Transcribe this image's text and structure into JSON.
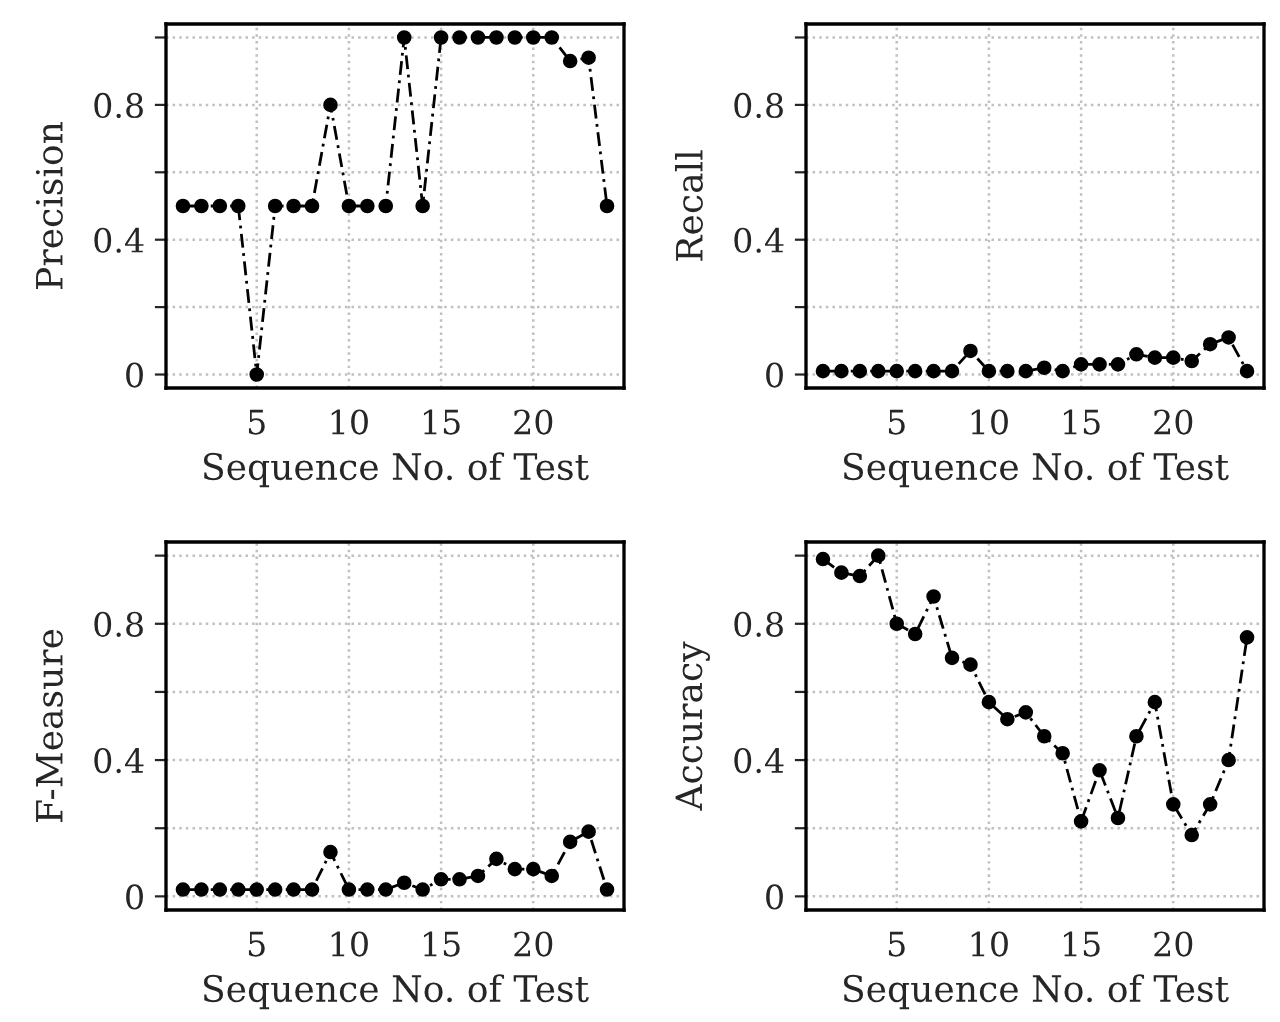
{
  "chart_data": [
    {
      "type": "line",
      "xlabel": "Sequence No. of Test",
      "ylabel": "Precision",
      "x": [
        1,
        2,
        3,
        4,
        5,
        6,
        7,
        8,
        9,
        10,
        11,
        12,
        13,
        14,
        15,
        16,
        17,
        18,
        19,
        20,
        21,
        22,
        23,
        24
      ],
      "series": [
        {
          "color": "#000000",
          "values": [
            0.5,
            0.5,
            0.5,
            0.5,
            0,
            0.5,
            0.5,
            0.5,
            0.8,
            0.5,
            0.5,
            0.5,
            1.0,
            0.5,
            1.0,
            1.0,
            1.0,
            1.0,
            1.0,
            1.0,
            1.0,
            0.93,
            0.94,
            0.5
          ]
        }
      ],
      "xlim": [
        0.08,
        24.92
      ],
      "ylim": [
        -0.04,
        1.04
      ],
      "xticks": [
        5,
        10,
        15,
        20
      ],
      "yticks": [
        0,
        {
          "value": 0.2,
          "label": null
        },
        0.4,
        {
          "value": 0.6,
          "label": null
        },
        0.8,
        {
          "value": 1,
          "label": null
        }
      ],
      "grid": true,
      "marker": "circle",
      "line_style": "dashed"
    },
    {
      "type": "line",
      "xlabel": "Sequence No. of Test",
      "ylabel": "Recall",
      "x": [
        1,
        2,
        3,
        4,
        5,
        6,
        7,
        8,
        9,
        10,
        11,
        12,
        13,
        14,
        15,
        16,
        17,
        18,
        19,
        20,
        21,
        22,
        23,
        24
      ],
      "series": [
        {
          "color": "#000000",
          "values": [
            0.01,
            0.01,
            0.01,
            0.01,
            0.01,
            0.01,
            0.01,
            0.01,
            0.07,
            0.01,
            0.01,
            0.01,
            0.02,
            0.01,
            0.03,
            0.03,
            0.03,
            0.06,
            0.05,
            0.05,
            0.04,
            0.09,
            0.11,
            0.01
          ]
        }
      ],
      "xlim": [
        0.08,
        24.92
      ],
      "ylim": [
        -0.04,
        1.04
      ],
      "xticks": [
        5,
        10,
        15,
        20
      ],
      "yticks": [
        0,
        {
          "value": 0.2,
          "label": null
        },
        0.4,
        {
          "value": 0.6,
          "label": null
        },
        0.8,
        {
          "value": 1,
          "label": null
        }
      ],
      "grid": true,
      "marker": "circle",
      "line_style": "dashed"
    },
    {
      "type": "line",
      "xlabel": "Sequence No. of Test",
      "ylabel": "F-Measure",
      "x": [
        1,
        2,
        3,
        4,
        5,
        6,
        7,
        8,
        9,
        10,
        11,
        12,
        13,
        14,
        15,
        16,
        17,
        18,
        19,
        20,
        21,
        22,
        23,
        24
      ],
      "series": [
        {
          "color": "#000000",
          "values": [
            0.02,
            0.02,
            0.02,
            0.02,
            0.02,
            0.02,
            0.02,
            0.02,
            0.13,
            0.02,
            0.02,
            0.02,
            0.04,
            0.02,
            0.05,
            0.05,
            0.06,
            0.11,
            0.08,
            0.08,
            0.06,
            0.16,
            0.19,
            0.02
          ]
        }
      ],
      "xlim": [
        0.08,
        24.92
      ],
      "ylim": [
        -0.04,
        1.04
      ],
      "xticks": [
        5,
        10,
        15,
        20
      ],
      "yticks": [
        0,
        {
          "value": 0.2,
          "label": null
        },
        0.4,
        {
          "value": 0.6,
          "label": null
        },
        0.8,
        {
          "value": 1,
          "label": null
        }
      ],
      "grid": true,
      "marker": "circle",
      "line_style": "dashed"
    },
    {
      "type": "line",
      "xlabel": "Sequence No. of Test",
      "ylabel": "Accuracy",
      "x": [
        1,
        2,
        3,
        4,
        5,
        6,
        7,
        8,
        9,
        10,
        11,
        12,
        13,
        14,
        15,
        16,
        17,
        18,
        19,
        20,
        21,
        22,
        23,
        24
      ],
      "series": [
        {
          "color": "#000000",
          "values": [
            0.99,
            0.95,
            0.94,
            1.0,
            0.8,
            0.77,
            0.88,
            0.7,
            0.68,
            0.57,
            0.52,
            0.54,
            0.47,
            0.42,
            0.22,
            0.37,
            0.23,
            0.47,
            0.57,
            0.27,
            0.18,
            0.27,
            0.4,
            0.76
          ]
        }
      ],
      "xlim": [
        0.08,
        24.92
      ],
      "ylim": [
        -0.04,
        1.04
      ],
      "xticks": [
        5,
        10,
        15,
        20
      ],
      "yticks": [
        0,
        {
          "value": 0.2,
          "label": null
        },
        0.4,
        {
          "value": 0.6,
          "label": null
        },
        0.8,
        {
          "value": 1,
          "label": null
        }
      ],
      "grid": true,
      "marker": "circle",
      "line_style": "dashed"
    }
  ]
}
